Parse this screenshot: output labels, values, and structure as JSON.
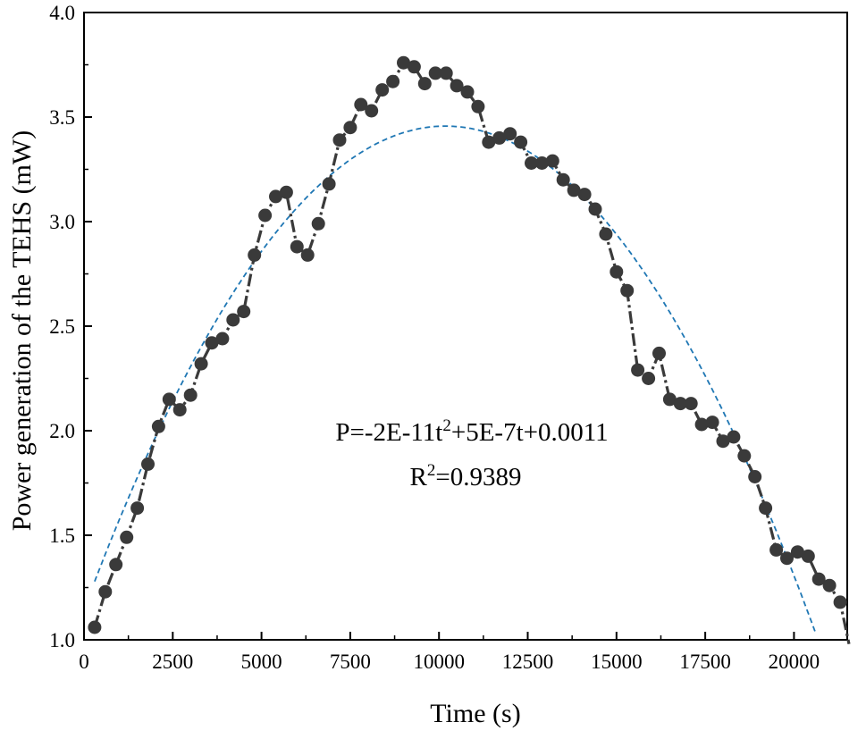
{
  "chart_data": {
    "type": "line",
    "xlabel": "Time (s)",
    "ylabel": "Power generation of the TEHS (mW)",
    "xlim": [
      0,
      21500
    ],
    "ylim": [
      1.0,
      4.0
    ],
    "x_ticks": [
      0,
      2500,
      5000,
      7500,
      10000,
      12500,
      15000,
      17500,
      20000
    ],
    "x_tick_labels": [
      "0",
      "2500",
      "5000",
      "7500",
      "10000",
      "12500",
      "15000",
      "17500",
      "20000"
    ],
    "y_ticks": [
      1.0,
      1.5,
      2.0,
      2.5,
      3.0,
      3.5,
      4.0
    ],
    "y_tick_labels": [
      "1.0",
      "1.5",
      "2.0",
      "2.5",
      "3.0",
      "3.5",
      "4.0"
    ],
    "grid": false,
    "series": [
      {
        "marker_color": "#3a3a3a",
        "line_color": "#3a3a3a",
        "line_style": "dash-dot",
        "x": [
          300,
          600,
          900,
          1200,
          1500,
          1800,
          2100,
          2400,
          2700,
          3000,
          3300,
          3600,
          3900,
          4200,
          4500,
          4800,
          5100,
          5400,
          5700,
          6000,
          6300,
          6600,
          6900,
          7200,
          7500,
          7800,
          8100,
          8400,
          8700,
          9000,
          9300,
          9600,
          9900,
          10200,
          10500,
          10800,
          11100,
          11400,
          11700,
          12000,
          12300,
          12600,
          12900,
          13200,
          13500,
          13800,
          14100,
          14400,
          14700,
          15000,
          15300,
          15600,
          15900,
          16200,
          16500,
          16800,
          17100,
          17400,
          17700,
          18000,
          18300,
          18600,
          18900,
          19200,
          19500,
          19800,
          20100,
          20400,
          20700,
          21000,
          21300
        ],
        "y": [
          1.06,
          1.23,
          1.36,
          1.49,
          1.63,
          1.84,
          2.02,
          2.15,
          2.1,
          2.17,
          2.32,
          2.42,
          2.44,
          2.53,
          2.57,
          2.84,
          3.03,
          3.12,
          3.14,
          2.88,
          2.84,
          2.99,
          3.18,
          3.39,
          3.45,
          3.56,
          3.53,
          3.63,
          3.67,
          3.76,
          3.74,
          3.66,
          3.71,
          3.71,
          3.65,
          3.62,
          3.55,
          3.38,
          3.4,
          3.42,
          3.38,
          3.28,
          3.28,
          3.29,
          3.2,
          3.15,
          3.13,
          3.06,
          2.94,
          2.76,
          2.67,
          2.29,
          2.25,
          2.37,
          2.15,
          2.13,
          2.13,
          2.03,
          2.04,
          1.95,
          1.97,
          1.88,
          1.78,
          1.63,
          1.43,
          1.39,
          1.42,
          1.4,
          1.29,
          1.26,
          1.18
        ],
        "line_end": [
          21550,
          0.98
        ]
      }
    ],
    "fit": {
      "color": "#1f77b4",
      "style": "dashed",
      "coefficients_in_ks": {
        "a": -0.0223,
        "b": 0.4541,
        "c": 1.145
      },
      "x_range": [
        300,
        20600
      ]
    },
    "annotations": {
      "line1_main": "P=-2E-11t",
      "line1_sup": "2",
      "line1_rest": "+5E-7t+0.0011",
      "line2_main": "R",
      "line2_sup": "2",
      "line2_rest": "=0.9389"
    }
  }
}
